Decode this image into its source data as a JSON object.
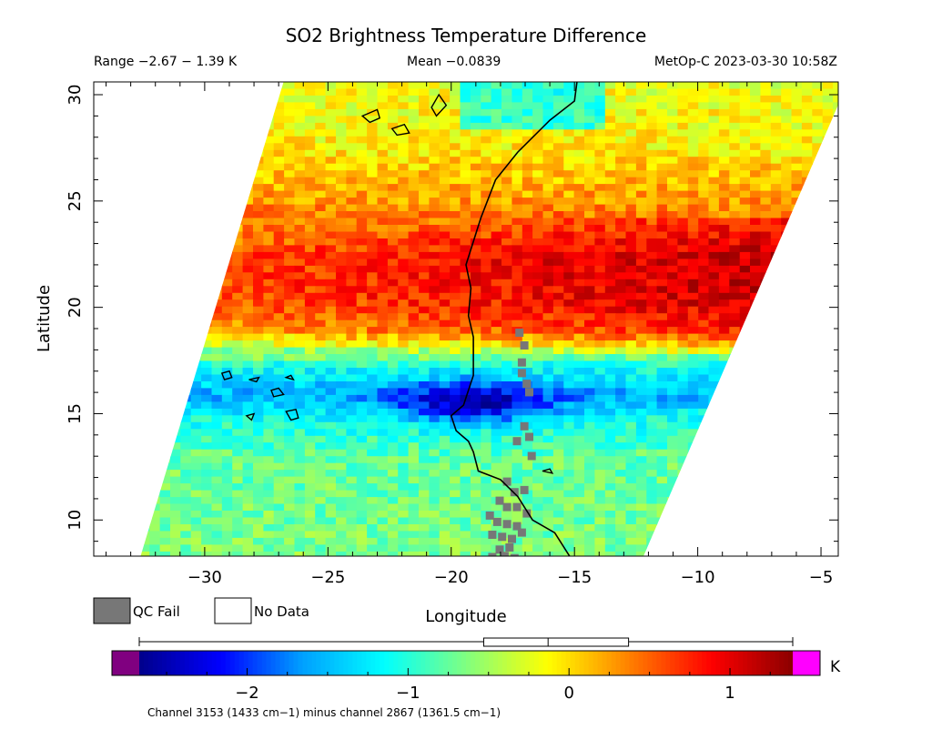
{
  "chart_data": {
    "type": "heatmap",
    "title": "SO2 Brightness Temperature Difference",
    "range_text": "Range −2.67 − 1.39 K",
    "mean_text": "Mean −0.0839",
    "satellite_text": "MetOp-C 2023-03-30 10:58Z",
    "xlabel": "Longitude",
    "ylabel": "Latitude",
    "xlim": [
      -34.5,
      -4.3
    ],
    "ylim": [
      8.3,
      30.6
    ],
    "xticks": [
      -30,
      -25,
      -20,
      -15,
      -10,
      -5
    ],
    "xtick_labels": [
      "−30",
      "−25",
      "−20",
      "−15",
      "−10",
      "−5"
    ],
    "yticks": [
      10,
      15,
      20,
      25,
      30
    ],
    "ytick_labels": [
      "10",
      "15",
      "20",
      "25",
      "30"
    ],
    "legend": [
      {
        "label": "QC Fail",
        "color": "#777777"
      },
      {
        "label": "No Data",
        "color": "#ffffff"
      }
    ],
    "colorbar": {
      "range": [
        -2.67,
        1.39
      ],
      "ticks": [
        -2,
        -1,
        0,
        1
      ],
      "tick_labels": [
        "−2",
        "−1",
        "0",
        "1"
      ],
      "unit": "K",
      "under_color": "#800080",
      "over_color": "#ff00ff",
      "colors": [
        "#00008b",
        "#0000ff",
        "#00a0ff",
        "#00ffff",
        "#80ff80",
        "#ffff00",
        "#ff8000",
        "#ff0000",
        "#8b0000"
      ]
    },
    "boxplot": {
      "whisker_low": -2.67,
      "q1": -0.53,
      "median": -0.13,
      "q3": 0.37,
      "whisker_high": 1.39
    },
    "swath": {
      "corners": [
        [
          -26.8,
          30.6
        ],
        [
          -3.9,
          30.6
        ],
        [
          -12.2,
          8.3
        ],
        [
          -32.6,
          8.3
        ]
      ]
    },
    "field_bands": [
      {
        "lat": 30.6,
        "value": -0.2
      },
      {
        "lat": 28.0,
        "value": -0.1
      },
      {
        "lat": 25.0,
        "value": 0.3
      },
      {
        "lat": 22.5,
        "value": 0.85
      },
      {
        "lat": 20.5,
        "value": 0.8
      },
      {
        "lat": 19.0,
        "value": 0.45
      },
      {
        "lat": 17.5,
        "value": -1.0
      },
      {
        "lat": 16.0,
        "value": -1.6
      },
      {
        "lat": 15.0,
        "value": -1.1
      },
      {
        "lat": 13.0,
        "value": -0.75
      },
      {
        "lat": 8.3,
        "value": -0.65
      }
    ],
    "low_anomaly": {
      "lon": -19.3,
      "lat": 15.7,
      "value": -2.55
    },
    "coastline": [
      [
        -14.9,
        30.6
      ],
      [
        -15.0,
        29.7
      ],
      [
        -16.0,
        28.8
      ],
      [
        -17.3,
        27.3
      ],
      [
        -18.2,
        26.0
      ],
      [
        -18.8,
        24.2
      ],
      [
        -19.4,
        22.0
      ],
      [
        -19.2,
        20.9
      ],
      [
        -19.3,
        19.6
      ],
      [
        -19.1,
        18.6
      ],
      [
        -19.1,
        16.8
      ],
      [
        -19.5,
        15.4
      ],
      [
        -20.0,
        14.9
      ],
      [
        -19.8,
        14.2
      ],
      [
        -19.3,
        13.7
      ],
      [
        -19.1,
        13.2
      ],
      [
        -18.9,
        12.3
      ],
      [
        -18.0,
        11.9
      ],
      [
        -17.3,
        11.1
      ],
      [
        -16.7,
        10.0
      ],
      [
        -15.8,
        9.4
      ],
      [
        -15.2,
        8.3
      ]
    ],
    "islands": [
      [
        [
          -23.6,
          29.0
        ],
        [
          -23.0,
          29.3
        ],
        [
          -22.9,
          28.9
        ],
        [
          -23.3,
          28.7
        ]
      ],
      [
        [
          -22.4,
          28.4
        ],
        [
          -21.9,
          28.6
        ],
        [
          -21.7,
          28.2
        ],
        [
          -22.2,
          28.1
        ]
      ],
      [
        [
          -20.8,
          29.4
        ],
        [
          -20.5,
          30.0
        ],
        [
          -20.2,
          29.5
        ],
        [
          -20.6,
          29.0
        ]
      ],
      [
        [
          -29.3,
          16.9
        ],
        [
          -29.0,
          17.0
        ],
        [
          -28.9,
          16.7
        ],
        [
          -29.2,
          16.6
        ]
      ],
      [
        [
          -28.2,
          16.6
        ],
        [
          -27.8,
          16.7
        ],
        [
          -27.9,
          16.5
        ]
      ],
      [
        [
          -26.7,
          16.7
        ],
        [
          -26.5,
          16.8
        ],
        [
          -26.4,
          16.6
        ]
      ],
      [
        [
          -27.3,
          16.1
        ],
        [
          -27.0,
          16.2
        ],
        [
          -26.8,
          15.9
        ],
        [
          -27.2,
          15.8
        ]
      ],
      [
        [
          -28.3,
          14.9
        ],
        [
          -28.0,
          15.0
        ],
        [
          -28.1,
          14.7
        ]
      ],
      [
        [
          -26.7,
          15.1
        ],
        [
          -26.3,
          15.2
        ],
        [
          -26.2,
          14.8
        ],
        [
          -26.5,
          14.7
        ]
      ],
      [
        [
          -16.3,
          12.3
        ],
        [
          -16.0,
          12.4
        ],
        [
          -15.9,
          12.2
        ]
      ]
    ],
    "qc_fail_cells": [
      [
        -17.4,
        19.0
      ],
      [
        -17.2,
        18.4
      ],
      [
        -17.3,
        17.6
      ],
      [
        -17.3,
        17.1
      ],
      [
        -17.1,
        16.6
      ],
      [
        -17.0,
        16.2
      ],
      [
        -17.2,
        14.6
      ],
      [
        -17.0,
        14.1
      ],
      [
        -17.5,
        13.9
      ],
      [
        -16.9,
        13.2
      ],
      [
        -17.9,
        12.0
      ],
      [
        -17.6,
        11.5
      ],
      [
        -17.2,
        11.6
      ],
      [
        -18.2,
        11.1
      ],
      [
        -17.9,
        10.8
      ],
      [
        -17.5,
        10.8
      ],
      [
        -17.1,
        10.5
      ],
      [
        -18.6,
        10.4
      ],
      [
        -18.3,
        10.1
      ],
      [
        -17.9,
        10.0
      ],
      [
        -17.5,
        9.9
      ],
      [
        -18.5,
        9.5
      ],
      [
        -18.1,
        9.4
      ],
      [
        -17.7,
        9.3
      ],
      [
        -17.3,
        9.6
      ],
      [
        -18.2,
        8.8
      ],
      [
        -17.8,
        8.9
      ],
      [
        -18.0,
        8.5
      ],
      [
        -17.6,
        8.4
      ],
      [
        -18.5,
        8.45
      ]
    ],
    "footer": "Channel 3153 (1433 cm−1) minus channel 2867 (1361.5 cm−1)"
  }
}
